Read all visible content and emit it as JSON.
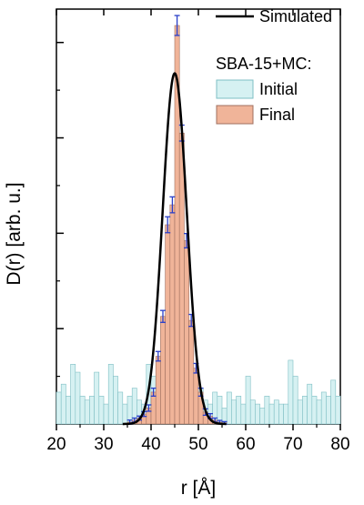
{
  "chart_data": {
    "type": "bar",
    "xlabel": "r [Å]",
    "ylabel": "D(r) [arb. u.]",
    "xlim": [
      20,
      80
    ],
    "ylim": [
      0,
      1.0
    ],
    "xticks": [
      20,
      30,
      40,
      50,
      60,
      70,
      80
    ],
    "yticks_labeled": false,
    "bin_width": 1,
    "legend": {
      "placement": "top-right",
      "group_title": "SBA-15+MC:",
      "entries": [
        {
          "label": "Simulated",
          "kind": "line",
          "color": "#000000"
        },
        {
          "label": "Initial",
          "kind": "bar",
          "color": "#d6f1f2"
        },
        {
          "label": "Final",
          "kind": "bar",
          "color": "#f0b499"
        }
      ]
    },
    "series": [
      {
        "name": "Initial",
        "color": "#d6f1f2",
        "edge": "#7fbfc4",
        "bin_starts": [
          20,
          21,
          22,
          23,
          24,
          25,
          26,
          27,
          28,
          29,
          30,
          31,
          32,
          33,
          34,
          35,
          36,
          37,
          38,
          39,
          40,
          41,
          42,
          43,
          44,
          45,
          46,
          47,
          48,
          49,
          50,
          51,
          52,
          53,
          54,
          55,
          56,
          57,
          58,
          59,
          60,
          61,
          62,
          63,
          64,
          65,
          66,
          67,
          68,
          69,
          70,
          71,
          72,
          73,
          74,
          75,
          76,
          77,
          78,
          79
        ],
        "values": [
          0.08,
          0.1,
          0.07,
          0.15,
          0.13,
          0.07,
          0.06,
          0.07,
          0.13,
          0.07,
          0.05,
          0.15,
          0.12,
          0.08,
          0.05,
          0.07,
          0.09,
          0.06,
          0.05,
          0.15,
          0.12,
          0.1,
          0.05,
          0.04,
          0.07,
          0.06,
          0.05,
          0.08,
          0.07,
          0.06,
          0.09,
          0.06,
          0.05,
          0.08,
          0.07,
          0.04,
          0.08,
          0.06,
          0.07,
          0.05,
          0.12,
          0.06,
          0.05,
          0.04,
          0.07,
          0.05,
          0.06,
          0.05,
          0.05,
          0.16,
          0.12,
          0.06,
          0.07,
          0.1,
          0.07,
          0.06,
          0.08,
          0.07,
          0.11,
          0.07
        ]
      },
      {
        "name": "Final",
        "color": "#f0b499",
        "edge": "#a07060",
        "bin_starts": [
          35,
          36,
          37,
          38,
          39,
          40,
          41,
          42,
          43,
          44,
          45,
          46,
          47,
          48,
          49,
          50,
          51,
          52,
          53,
          54,
          55
        ],
        "values": [
          0.005,
          0.01,
          0.015,
          0.025,
          0.04,
          0.08,
          0.17,
          0.27,
          0.5,
          0.55,
          1.0,
          0.73,
          0.46,
          0.26,
          0.14,
          0.08,
          0.03,
          0.02,
          0.01,
          0.005,
          0.003
        ],
        "error_bars": [
          0.005,
          0.005,
          0.005,
          0.006,
          0.008,
          0.01,
          0.012,
          0.015,
          0.02,
          0.02,
          0.025,
          0.02,
          0.018,
          0.015,
          0.012,
          0.01,
          0.008,
          0.006,
          0.005,
          0.004,
          0.003
        ]
      },
      {
        "name": "Simulated",
        "kind": "line",
        "color": "#000000",
        "model": "gaussian",
        "center": 45.0,
        "sigma": 2.55,
        "amplitude": 0.88
      }
    ]
  }
}
